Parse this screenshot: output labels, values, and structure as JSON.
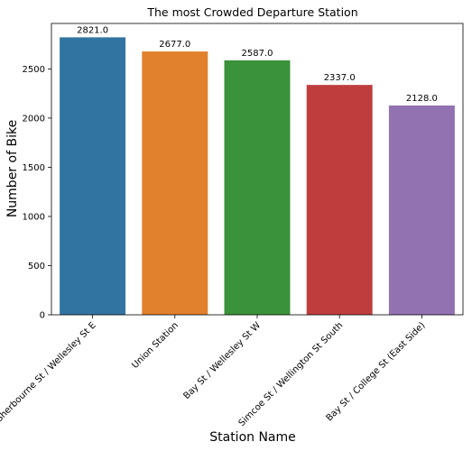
{
  "chart_data": {
    "type": "bar",
    "title": "The most Crowded Departure Station",
    "xlabel": "Station Name",
    "ylabel": "Number of Bike",
    "categories": [
      "Sherbourne St / Wellesley St E",
      "Union Station",
      "Bay St / Wellesley St W",
      "Simcoe St / Wellington St South",
      "Bay St / College St (East Side)"
    ],
    "values": [
      2821,
      2677,
      2587,
      2337,
      2128
    ],
    "data_labels": [
      "2821.0",
      "2677.0",
      "2587.0",
      "2337.0",
      "2128.0"
    ],
    "colors": [
      "#3274a1",
      "#e1812c",
      "#3a923a",
      "#c03d3e",
      "#9372b2"
    ],
    "ylim": [
      0,
      2962
    ],
    "yticks": [
      0,
      500,
      1000,
      1500,
      2000,
      2500
    ],
    "grid": false,
    "legend": "none"
  }
}
